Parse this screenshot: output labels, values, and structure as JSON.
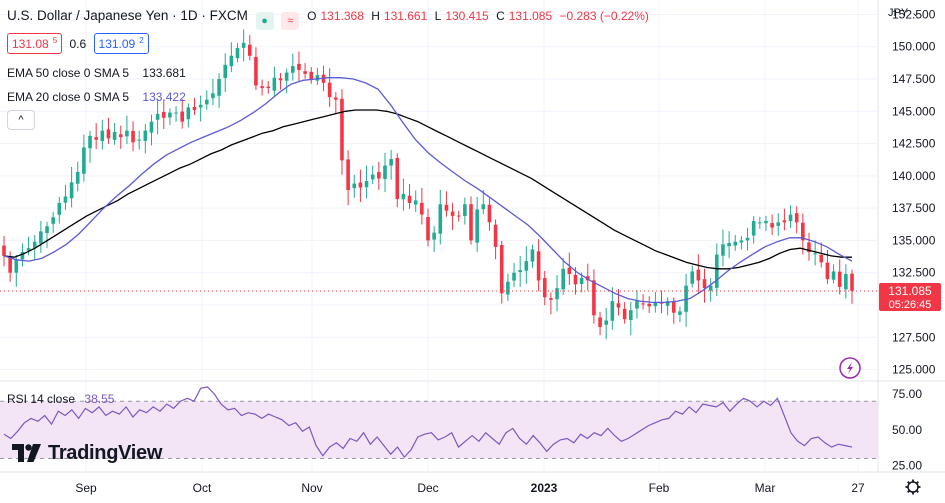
{
  "header": {
    "title": "U.S. Dollar / Japanese Yen · 1D · FXCM",
    "ohlc": {
      "o_label": "O",
      "o": "131.368",
      "h_label": "H",
      "h": "131.661",
      "l_label": "L",
      "l": "130.415",
      "c_label": "C",
      "c": "131.085",
      "change": "−0.283 (−0.22%)"
    },
    "sell_price": "131.08",
    "sell_sup": "5",
    "spread": "0.6",
    "buy_price": "131.09",
    "buy_sup": "2",
    "mode_icon_1": "●",
    "mode_icon_2": "≈"
  },
  "indicators": {
    "ema50_label": "EMA 50 close 0 SMA 5",
    "ema50_value": "133.681",
    "ema20_label": "EMA 20 close 0 SMA 5",
    "ema20_value": "133.422",
    "collapse_glyph": "^",
    "rsi_label": "RSI 14 close",
    "rsi_value": "38.55"
  },
  "price_axis": {
    "currency": "JPY",
    "current_price": "131.085",
    "countdown": "05:26:45"
  },
  "logo_text": "TradingView",
  "colors": {
    "up": "#22ab94",
    "down": "#f23645",
    "ema50": "#000000",
    "ema20": "#5b5bd6",
    "rsi": "#7e57c2",
    "rsi_band": "#f3e5f5",
    "price_line": "#f23645"
  },
  "chart_data": [
    {
      "type": "candlestick",
      "symbol": "USDJPY",
      "x_ticks": [
        "Sep",
        "Oct",
        "Nov",
        "Dec",
        "2023",
        "Feb",
        "Mar",
        "27"
      ],
      "y_ticks": [
        "125.000",
        "127.500",
        "130.000",
        "132.500",
        "135.000",
        "137.500",
        "140.000",
        "142.500",
        "145.000",
        "147.500",
        "150.000",
        "152.500"
      ],
      "ylim": [
        124.5,
        153
      ],
      "close_path": [
        133.8,
        132.5,
        133.5,
        134.1,
        134.4,
        134.9,
        135.7,
        136.1,
        136.8,
        137.9,
        138.4,
        139.5,
        140.3,
        142.2,
        143.1,
        142.8,
        143.5,
        142.9,
        143.4,
        143.0,
        143.5,
        142.6,
        142.8,
        143.5,
        144.2,
        144.8,
        144.5,
        144.9,
        144.9,
        144.2,
        145.3,
        145.1,
        145.5,
        145.9,
        146.4,
        147.5,
        148.6,
        149.3,
        149.9,
        150.3,
        149.3,
        147.0,
        146.8,
        146.8,
        147.6,
        147.4,
        148.0,
        148.5,
        148.2,
        147.9,
        147.5,
        147.8,
        147.2,
        146.1,
        145.9,
        141.2,
        138.9,
        139.4,
        139.1,
        139.6,
        140.1,
        139.8,
        140.8,
        141.3,
        138.2,
        138.6,
        137.9,
        138.1,
        137.0,
        135.0,
        135.6,
        137.8,
        137.3,
        136.9,
        136.9,
        137.8,
        135.0,
        137.4,
        137.8,
        136.4,
        134.5,
        130.9,
        131.8,
        132.5,
        132.7,
        133.4,
        134.3,
        131.9,
        130.6,
        130.4,
        131.3,
        132.8,
        132.4,
        131.6,
        132.1,
        131.9,
        129.2,
        128.3,
        128.8,
        130.3,
        129.8,
        128.9,
        129.6,
        130.3,
        130.1,
        129.9,
        130.2,
        130.1,
        130.3,
        129.4,
        129.5,
        131.5,
        132.6,
        131.9,
        131.3,
        131.5,
        133.9,
        134.7,
        134.8,
        134.9,
        135.0,
        135.2,
        136.5,
        136.4,
        136.5,
        136.0,
        136.4,
        136.4,
        137.0,
        136.4,
        135.0,
        134.1,
        134.0,
        133.3,
        132.0,
        132.6,
        131.4,
        132.4,
        131.1
      ],
      "ema50": [
        133.8,
        133.7,
        134.0,
        134.4,
        134.9,
        135.4,
        135.9,
        136.4,
        136.9,
        137.3,
        137.7,
        138.1,
        138.6,
        139.0,
        139.4,
        139.8,
        140.2,
        140.6,
        140.9,
        141.3,
        141.7,
        142.0,
        142.4,
        142.7,
        143.0,
        143.3,
        143.5,
        143.8,
        144.0,
        144.2,
        144.4,
        144.6,
        144.8,
        145.0,
        145.1,
        145.1,
        145.1,
        145.0,
        144.8,
        144.5,
        144.2,
        143.8,
        143.4,
        143.0,
        142.6,
        142.2,
        141.8,
        141.4,
        141.0,
        140.6,
        140.2,
        139.8,
        139.3,
        138.8,
        138.3,
        137.8,
        137.3,
        136.8,
        136.3,
        135.8,
        135.4,
        135.0,
        134.6,
        134.2,
        133.9,
        133.6,
        133.3,
        133.1,
        132.9,
        132.8,
        132.8,
        132.9,
        133.1,
        133.3,
        133.6,
        134.0,
        134.3,
        134.4,
        134.2,
        134.0,
        133.8,
        133.7,
        133.7
      ],
      "ema20": [
        133.8,
        133.5,
        133.4,
        133.6,
        134.1,
        134.7,
        135.5,
        136.5,
        137.5,
        138.4,
        139.2,
        140.1,
        140.9,
        141.6,
        142.1,
        142.6,
        143.0,
        143.4,
        143.8,
        144.3,
        144.9,
        145.6,
        146.4,
        147.1,
        147.4,
        147.5,
        147.6,
        147.6,
        147.5,
        147.2,
        146.7,
        145.5,
        144.1,
        142.8,
        141.8,
        141.0,
        140.3,
        139.6,
        139.0,
        138.3,
        137.6,
        136.9,
        136.2,
        135.3,
        134.3,
        133.3,
        132.5,
        131.9,
        131.4,
        130.9,
        130.5,
        130.3,
        130.2,
        130.2,
        130.3,
        130.5,
        131.1,
        131.8,
        132.6,
        133.3,
        133.9,
        134.5,
        134.9,
        135.2,
        135.2,
        134.9,
        134.5,
        133.9,
        133.4
      ]
    },
    {
      "type": "line",
      "name": "RSI 14 close",
      "y_ticks": [
        "25.00",
        "50.00",
        "75.00"
      ],
      "ylim": [
        22,
        82
      ],
      "band": [
        30,
        70
      ],
      "values": [
        47,
        44,
        49,
        55,
        58,
        56,
        60,
        54,
        63,
        60,
        64,
        58,
        65,
        62,
        66,
        60,
        63,
        61,
        66,
        59,
        64,
        62,
        66,
        63,
        68,
        65,
        70,
        72,
        70,
        79,
        80,
        75,
        68,
        64,
        65,
        60,
        62,
        61,
        58,
        61,
        59,
        57,
        53,
        55,
        49,
        52,
        39,
        32,
        38,
        41,
        37,
        44,
        42,
        48,
        40,
        45,
        39,
        33,
        38,
        31,
        36,
        45,
        47,
        48,
        43,
        45,
        48,
        38,
        42,
        46,
        42,
        48,
        44,
        40,
        48,
        51,
        44,
        40,
        46,
        41,
        35,
        40,
        43,
        44,
        41,
        47,
        44,
        48,
        46,
        51,
        46,
        42,
        44,
        47,
        50,
        53,
        55,
        57,
        58,
        63,
        61,
        66,
        62,
        68,
        67,
        66,
        69,
        63,
        68,
        72,
        70,
        66,
        70,
        67,
        72,
        60,
        48,
        42,
        39,
        44,
        45,
        41,
        38,
        40,
        39,
        38
      ]
    }
  ]
}
